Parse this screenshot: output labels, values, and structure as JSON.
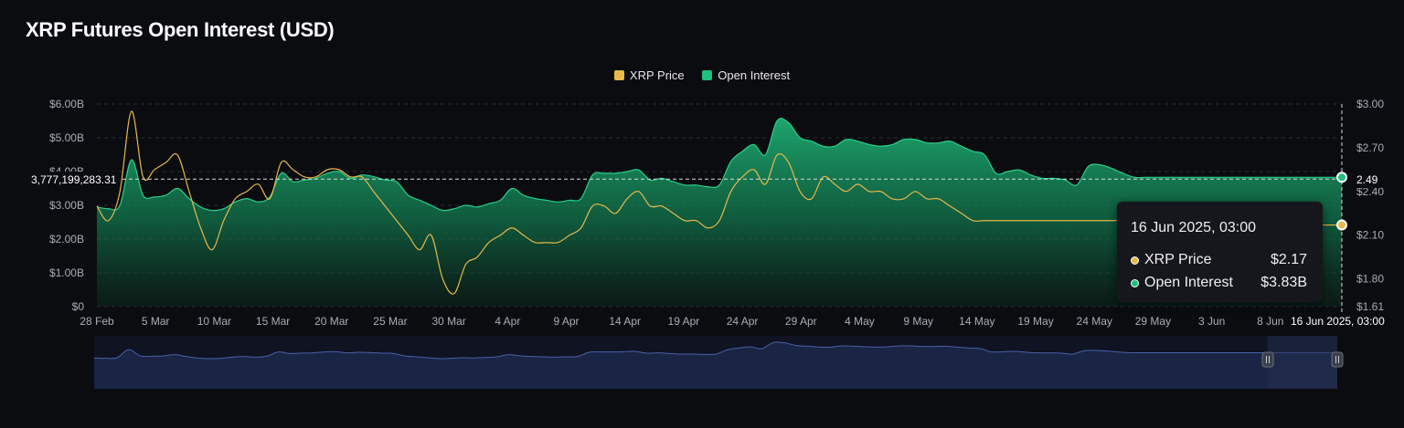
{
  "title": "XRP Futures Open Interest (USD)",
  "legend": [
    {
      "label": "XRP Price",
      "color": "#e8b84a"
    },
    {
      "label": "Open Interest",
      "color": "#1fc07e"
    }
  ],
  "tooltip": {
    "date": "16 Jun 2025, 03:00",
    "rows": [
      {
        "label": "XRP Price",
        "value": "$2.17",
        "color": "#e8b84a"
      },
      {
        "label": "Open Interest",
        "value": "$3.83B",
        "color": "#1fc07e"
      }
    ]
  },
  "crosshair": {
    "x_label": "16 Jun 2025, 03:00",
    "y_left_label": "3,777,199,283.31",
    "y_right_label": "2.49"
  },
  "chart_data": {
    "type": "area",
    "title": "XRP Futures Open Interest (USD)",
    "legend_placement": "top-center",
    "grid": true,
    "x_tick_labels": [
      "28 Feb",
      "5 Mar",
      "10 Mar",
      "15 Mar",
      "20 Mar",
      "25 Mar",
      "30 Mar",
      "4 Apr",
      "9 Apr",
      "14 Apr",
      "19 Apr",
      "24 Apr",
      "29 Apr",
      "4 May",
      "9 May",
      "14 May",
      "19 May",
      "24 May",
      "29 May",
      "3 Jun",
      "8 Jun"
    ],
    "y_left": {
      "ticks": [
        "$0",
        "$1.00B",
        "$2.00B",
        "$3.00B",
        "$4.00B",
        "$5.00B",
        "$6.00B"
      ],
      "range": [
        0,
        6
      ]
    },
    "y_right": {
      "ticks": [
        "$1.61",
        "$1.80",
        "$2.10",
        "$2.40",
        "$2.70",
        "$3.00"
      ],
      "tick_values": [
        1.61,
        1.8,
        2.1,
        2.4,
        2.7,
        3.0
      ],
      "range": [
        1.61,
        3.0
      ]
    },
    "x": [
      0,
      1,
      2,
      3,
      4,
      5,
      6,
      7,
      8,
      9,
      10,
      11,
      12,
      13,
      14,
      15,
      16,
      17,
      18,
      19,
      20,
      21,
      22,
      23,
      24,
      25,
      26,
      27,
      28,
      29,
      30,
      31,
      32,
      33,
      34,
      35,
      36,
      37,
      38,
      39,
      40,
      41,
      42,
      43,
      44,
      45,
      46,
      47,
      48,
      49,
      50,
      51,
      52,
      53,
      54,
      55,
      56,
      57,
      58,
      59,
      60,
      61,
      62,
      63,
      64,
      65,
      66,
      67,
      68,
      69,
      70,
      71,
      72,
      73,
      74,
      75,
      76,
      77,
      78,
      79,
      80,
      81,
      82,
      83,
      84,
      85,
      86,
      87,
      88,
      89,
      90,
      91,
      92,
      93,
      94,
      95,
      96,
      97,
      98,
      99,
      100,
      101,
      102,
      103,
      104,
      105,
      106,
      107,
      108
    ],
    "series": [
      {
        "name": "Open Interest",
        "unit": "B USD",
        "axis": "left",
        "values": [
          2.95,
          2.9,
          3.0,
          4.35,
          3.3,
          3.25,
          3.3,
          3.5,
          3.2,
          2.95,
          2.85,
          2.9,
          3.1,
          3.2,
          3.1,
          3.25,
          3.95,
          3.7,
          3.75,
          3.8,
          3.95,
          4.0,
          3.8,
          3.9,
          3.85,
          3.75,
          3.7,
          3.3,
          3.15,
          3.0,
          2.85,
          2.9,
          3.0,
          2.95,
          3.05,
          3.15,
          3.5,
          3.3,
          3.2,
          3.15,
          3.1,
          3.15,
          3.2,
          3.9,
          3.95,
          3.95,
          4.0,
          4.05,
          3.75,
          3.8,
          3.7,
          3.6,
          3.6,
          3.55,
          3.6,
          4.3,
          4.6,
          4.8,
          4.5,
          5.5,
          5.45,
          5.0,
          4.9,
          4.75,
          4.75,
          4.95,
          4.9,
          4.8,
          4.75,
          4.8,
          4.95,
          4.95,
          4.85,
          4.85,
          4.9,
          4.75,
          4.6,
          4.5,
          3.95,
          4.0,
          4.05,
          3.9,
          3.8,
          3.8,
          3.75,
          3.6,
          4.15,
          4.2,
          4.1,
          3.95,
          3.83,
          3.83,
          3.83,
          3.83,
          3.83,
          3.83,
          3.83,
          3.83,
          3.83,
          3.83,
          3.83,
          3.83,
          3.83,
          3.83,
          3.83,
          3.83,
          3.83,
          3.83,
          3.83
        ]
      },
      {
        "name": "XRP Price",
        "unit": "USD",
        "axis": "right",
        "values": [
          2.3,
          2.2,
          2.4,
          2.95,
          2.5,
          2.55,
          2.6,
          2.65,
          2.4,
          2.15,
          2.0,
          2.2,
          2.35,
          2.4,
          2.45,
          2.35,
          2.6,
          2.55,
          2.5,
          2.5,
          2.55,
          2.55,
          2.5,
          2.5,
          2.4,
          2.3,
          2.2,
          2.1,
          2.0,
          2.1,
          1.8,
          1.7,
          1.9,
          1.95,
          2.05,
          2.1,
          2.15,
          2.1,
          2.05,
          2.05,
          2.05,
          2.1,
          2.15,
          2.3,
          2.3,
          2.25,
          2.35,
          2.4,
          2.3,
          2.3,
          2.25,
          2.2,
          2.2,
          2.15,
          2.2,
          2.4,
          2.5,
          2.55,
          2.45,
          2.65,
          2.6,
          2.4,
          2.35,
          2.5,
          2.45,
          2.4,
          2.45,
          2.4,
          2.4,
          2.35,
          2.35,
          2.4,
          2.35,
          2.35,
          2.3,
          2.25,
          2.2,
          2.2,
          2.2,
          2.2,
          2.2,
          2.2,
          2.2,
          2.2,
          2.2,
          2.2,
          2.2,
          2.2,
          2.2,
          2.2,
          2.17,
          2.17,
          2.17,
          2.17,
          2.17,
          2.17,
          2.17,
          2.17,
          2.17,
          2.17,
          2.17,
          2.17,
          2.17,
          2.17,
          2.17,
          2.17,
          2.17,
          2.17,
          2.17
        ]
      }
    ]
  }
}
